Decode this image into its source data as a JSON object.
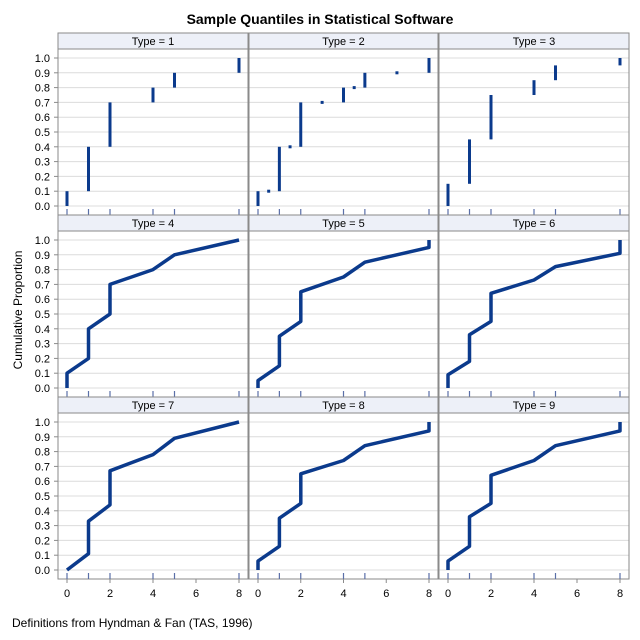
{
  "title": "Sample Quantiles in Statistical Software",
  "ylabel": "Cumulative Proportion",
  "footnote": "Definitions from Hyndman & Fan (TAS, 1996)",
  "colors": {
    "line": "#0b3a8c",
    "header_bg": "#edf0f8",
    "grid": "#dcdcdc",
    "axis": "#8a8a8a"
  },
  "chart_data": {
    "type": "line",
    "xlim": [
      0,
      8
    ],
    "ylim": [
      0,
      1
    ],
    "x_ticks": [
      0,
      2,
      4,
      6,
      8
    ],
    "x_tick_labels": [
      "0",
      "2",
      "4",
      "6",
      "8"
    ],
    "y_ticks": [
      0,
      0.1,
      0.2,
      0.3,
      0.4,
      0.5,
      0.6,
      0.7,
      0.8,
      0.9,
      1
    ],
    "y_tick_labels": [
      "0.0",
      "0.1",
      "0.2",
      "0.3",
      "0.4",
      "0.5",
      "0.6",
      "0.7",
      "0.8",
      "0.9",
      "1.0"
    ],
    "data_x": [
      0,
      1,
      2,
      4,
      5,
      8
    ],
    "panels": [
      {
        "label": "Type = 1",
        "kind": "segments",
        "segments": [
          [
            0,
            0,
            0.1
          ],
          [
            1,
            0.1,
            0.4
          ],
          [
            2,
            0.4,
            0.7
          ],
          [
            4,
            0.7,
            0.8
          ],
          [
            5,
            0.8,
            0.9
          ],
          [
            8,
            0.9,
            1.0
          ]
        ]
      },
      {
        "label": "Type = 2",
        "kind": "segments",
        "segments": [
          [
            0,
            0,
            0.1
          ],
          [
            0.5,
            0.1,
            0.1
          ],
          [
            1,
            0.1,
            0.4
          ],
          [
            1.5,
            0.4,
            0.4
          ],
          [
            2,
            0.4,
            0.7
          ],
          [
            3,
            0.7,
            0.7
          ],
          [
            4,
            0.7,
            0.8
          ],
          [
            4.5,
            0.8,
            0.8
          ],
          [
            5,
            0.8,
            0.9
          ],
          [
            6.5,
            0.9,
            0.9
          ],
          [
            8,
            0.9,
            1.0
          ]
        ]
      },
      {
        "label": "Type = 3",
        "kind": "segments",
        "segments": [
          [
            0,
            0,
            0.15
          ],
          [
            1,
            0.15,
            0.45
          ],
          [
            2,
            0.45,
            0.75
          ],
          [
            4,
            0.75,
            0.85
          ],
          [
            5,
            0.85,
            0.95
          ],
          [
            8,
            0.95,
            1.0
          ]
        ]
      },
      {
        "label": "Type = 4",
        "kind": "line",
        "points": [
          [
            0,
            0
          ],
          [
            0,
            0.1
          ],
          [
            1,
            0.2
          ],
          [
            1,
            0.4
          ],
          [
            2,
            0.5
          ],
          [
            2,
            0.7
          ],
          [
            4,
            0.8
          ],
          [
            5,
            0.9
          ],
          [
            8,
            1.0
          ]
        ]
      },
      {
        "label": "Type = 5",
        "kind": "line",
        "points": [
          [
            0,
            0
          ],
          [
            0,
            0.05
          ],
          [
            1,
            0.15
          ],
          [
            1,
            0.35
          ],
          [
            2,
            0.45
          ],
          [
            2,
            0.65
          ],
          [
            4,
            0.75
          ],
          [
            5,
            0.85
          ],
          [
            8,
            0.95
          ],
          [
            8,
            1.0
          ]
        ]
      },
      {
        "label": "Type = 6",
        "kind": "line",
        "points": [
          [
            0,
            0
          ],
          [
            0,
            0.09
          ],
          [
            1,
            0.18
          ],
          [
            1,
            0.36
          ],
          [
            2,
            0.45
          ],
          [
            2,
            0.64
          ],
          [
            4,
            0.73
          ],
          [
            5,
            0.82
          ],
          [
            8,
            0.91
          ],
          [
            8,
            1.0
          ]
        ]
      },
      {
        "label": "Type = 7",
        "kind": "line",
        "points": [
          [
            0,
            0
          ],
          [
            1,
            0.11
          ],
          [
            1,
            0.33
          ],
          [
            2,
            0.44
          ],
          [
            2,
            0.67
          ],
          [
            4,
            0.78
          ],
          [
            5,
            0.89
          ],
          [
            8,
            1.0
          ]
        ]
      },
      {
        "label": "Type = 8",
        "kind": "line",
        "points": [
          [
            0,
            0
          ],
          [
            0,
            0.06
          ],
          [
            1,
            0.16
          ],
          [
            1,
            0.35
          ],
          [
            2,
            0.45
          ],
          [
            2,
            0.65
          ],
          [
            4,
            0.74
          ],
          [
            5,
            0.84
          ],
          [
            8,
            0.94
          ],
          [
            8,
            1.0
          ]
        ]
      },
      {
        "label": "Type = 9",
        "kind": "line",
        "points": [
          [
            0,
            0
          ],
          [
            0,
            0.06
          ],
          [
            1,
            0.16
          ],
          [
            1,
            0.36
          ],
          [
            2,
            0.45
          ],
          [
            2,
            0.64
          ],
          [
            4,
            0.74
          ],
          [
            5,
            0.84
          ],
          [
            8,
            0.94
          ],
          [
            8,
            1.0
          ]
        ]
      }
    ]
  }
}
